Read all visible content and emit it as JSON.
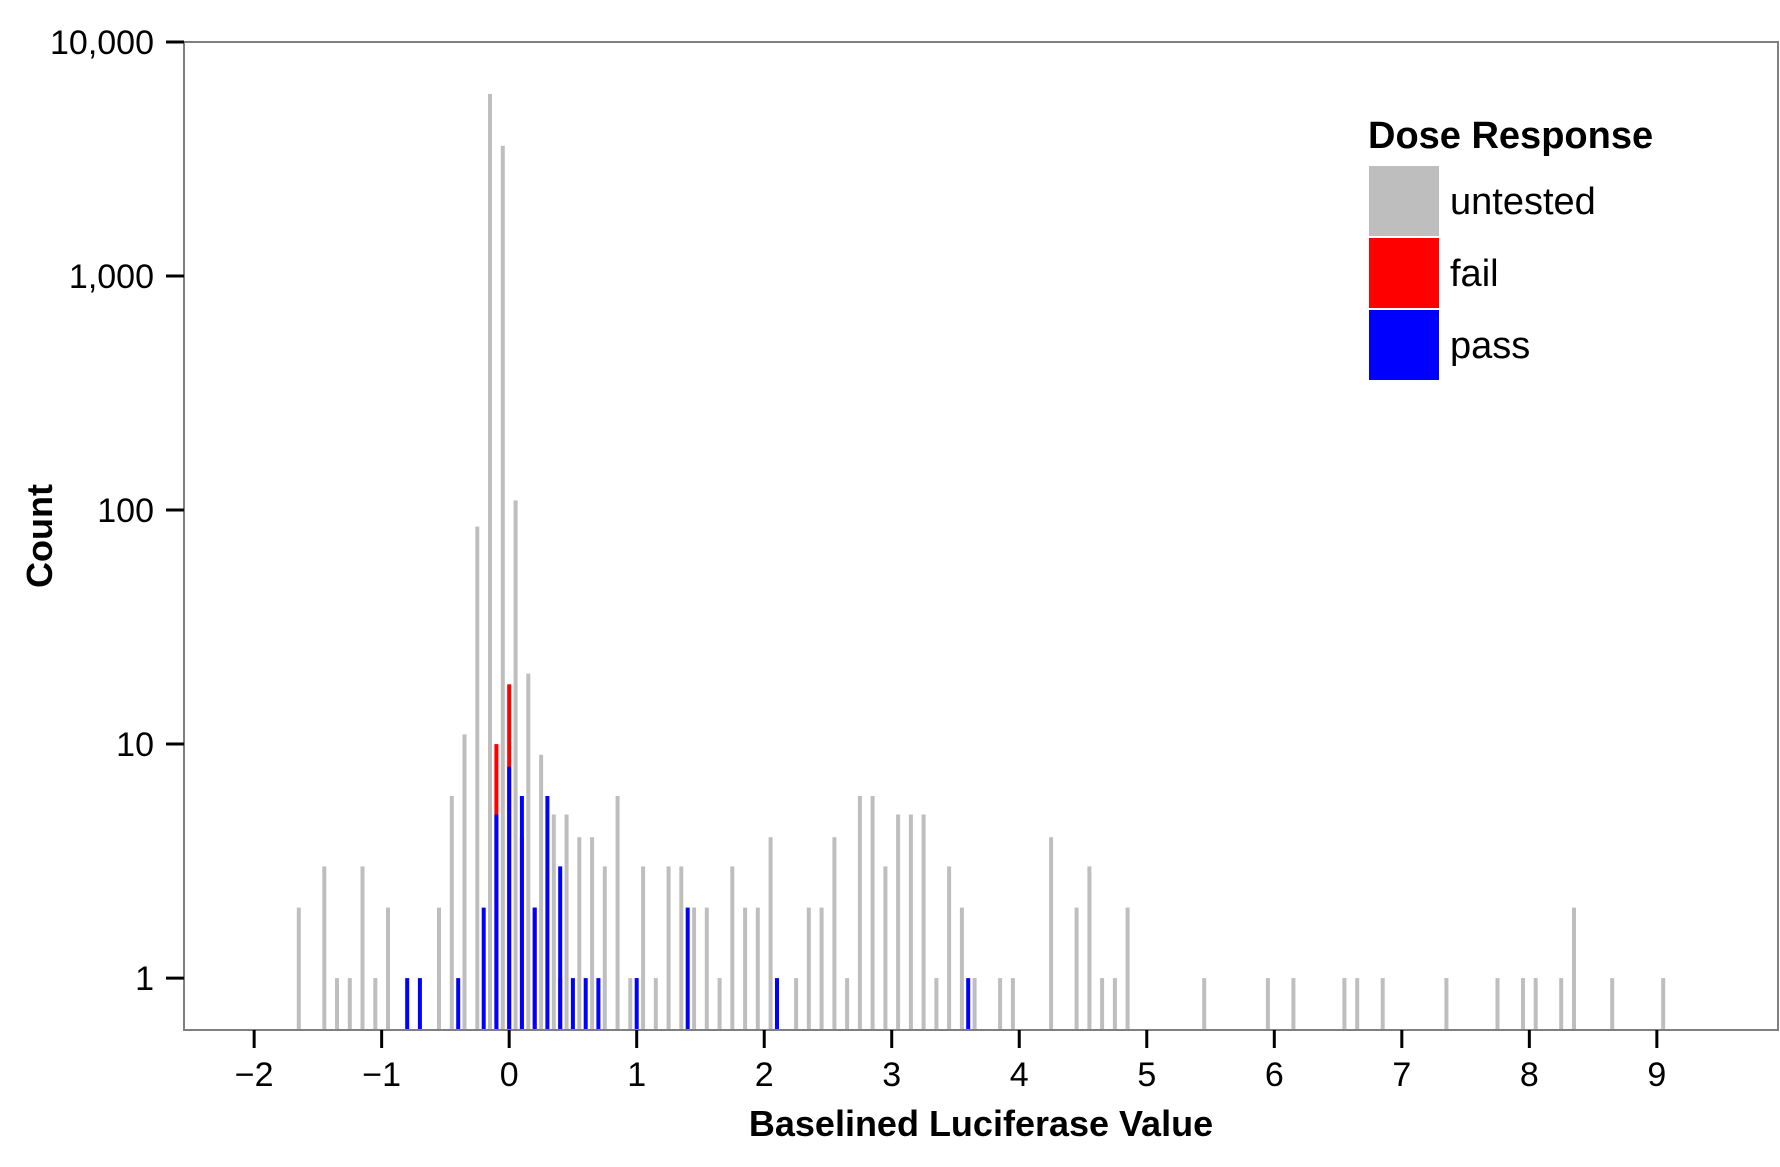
{
  "chart_data": {
    "type": "bar",
    "title": "",
    "xlabel": "Baselined Luciferase Value",
    "ylabel": "Count",
    "yscale": "log10",
    "xlim": [
      -2.55,
      9.95
    ],
    "ylim": [
      0.6,
      10000
    ],
    "x_ticks": [
      -2,
      -1,
      0,
      1,
      2,
      3,
      4,
      5,
      6,
      7,
      8,
      9
    ],
    "x_tick_labels": [
      "−2",
      "−1",
      "0",
      "1",
      "2",
      "3",
      "4",
      "5",
      "6",
      "7",
      "8",
      "9"
    ],
    "y_ticks": [
      1,
      10,
      100,
      1000,
      10000
    ],
    "y_tick_labels": [
      "1",
      "10",
      "100",
      "1,000",
      "10,000"
    ],
    "grid": false,
    "legend": {
      "title": "Dose Response",
      "position": "top-right",
      "entries": [
        {
          "label": "untested",
          "color": "#bebebe"
        },
        {
          "label": "fail",
          "color": "#ff0000"
        },
        {
          "label": "pass",
          "color": "#0000ff"
        }
      ]
    },
    "series": [
      {
        "name": "untested",
        "color": "#bebebe",
        "points": [
          {
            "x": -1.65,
            "y": 2
          },
          {
            "x": -1.45,
            "y": 3
          },
          {
            "x": -1.35,
            "y": 1
          },
          {
            "x": -1.25,
            "y": 1
          },
          {
            "x": -1.15,
            "y": 3
          },
          {
            "x": -1.05,
            "y": 1
          },
          {
            "x": -0.95,
            "y": 2
          },
          {
            "x": -0.55,
            "y": 2
          },
          {
            "x": -0.45,
            "y": 6
          },
          {
            "x": -0.35,
            "y": 11
          },
          {
            "x": -0.25,
            "y": 85
          },
          {
            "x": -0.15,
            "y": 6000
          },
          {
            "x": -0.05,
            "y": 3600
          },
          {
            "x": 0.05,
            "y": 110
          },
          {
            "x": 0.15,
            "y": 20
          },
          {
            "x": 0.25,
            "y": 9
          },
          {
            "x": 0.35,
            "y": 5
          },
          {
            "x": 0.45,
            "y": 5
          },
          {
            "x": 0.55,
            "y": 4
          },
          {
            "x": 0.65,
            "y": 4
          },
          {
            "x": 0.75,
            "y": 3
          },
          {
            "x": 0.85,
            "y": 6
          },
          {
            "x": 0.95,
            "y": 1
          },
          {
            "x": 1.05,
            "y": 3
          },
          {
            "x": 1.15,
            "y": 1
          },
          {
            "x": 1.25,
            "y": 3
          },
          {
            "x": 1.35,
            "y": 3
          },
          {
            "x": 1.45,
            "y": 2
          },
          {
            "x": 1.55,
            "y": 2
          },
          {
            "x": 1.65,
            "y": 1
          },
          {
            "x": 1.75,
            "y": 3
          },
          {
            "x": 1.85,
            "y": 2
          },
          {
            "x": 1.95,
            "y": 2
          },
          {
            "x": 2.05,
            "y": 4
          },
          {
            "x": 2.25,
            "y": 1
          },
          {
            "x": 2.35,
            "y": 2
          },
          {
            "x": 2.45,
            "y": 2
          },
          {
            "x": 2.55,
            "y": 4
          },
          {
            "x": 2.65,
            "y": 1
          },
          {
            "x": 2.75,
            "y": 6
          },
          {
            "x": 2.85,
            "y": 6
          },
          {
            "x": 2.95,
            "y": 3
          },
          {
            "x": 3.05,
            "y": 5
          },
          {
            "x": 3.15,
            "y": 5
          },
          {
            "x": 3.25,
            "y": 5
          },
          {
            "x": 3.35,
            "y": 1
          },
          {
            "x": 3.45,
            "y": 3
          },
          {
            "x": 3.55,
            "y": 2
          },
          {
            "x": 3.65,
            "y": 1
          },
          {
            "x": 3.85,
            "y": 1
          },
          {
            "x": 3.95,
            "y": 1
          },
          {
            "x": 4.25,
            "y": 4
          },
          {
            "x": 4.45,
            "y": 2
          },
          {
            "x": 4.55,
            "y": 3
          },
          {
            "x": 4.65,
            "y": 1
          },
          {
            "x": 4.75,
            "y": 1
          },
          {
            "x": 4.85,
            "y": 2
          },
          {
            "x": 5.45,
            "y": 1
          },
          {
            "x": 5.95,
            "y": 1
          },
          {
            "x": 6.15,
            "y": 1
          },
          {
            "x": 6.55,
            "y": 1
          },
          {
            "x": 6.65,
            "y": 1
          },
          {
            "x": 6.85,
            "y": 1
          },
          {
            "x": 7.35,
            "y": 1
          },
          {
            "x": 7.75,
            "y": 1
          },
          {
            "x": 7.95,
            "y": 1
          },
          {
            "x": 8.05,
            "y": 1
          },
          {
            "x": 8.25,
            "y": 1
          },
          {
            "x": 8.35,
            "y": 2
          },
          {
            "x": 8.65,
            "y": 1
          },
          {
            "x": 9.05,
            "y": 1
          }
        ]
      },
      {
        "name": "fail",
        "color": "#ff0000",
        "points": [
          {
            "x": -0.1,
            "y": 10
          },
          {
            "x": 0.0,
            "y": 18
          },
          {
            "x": 0.1,
            "y": 4
          },
          {
            "x": 0.2,
            "y": 2
          },
          {
            "x": 0.4,
            "y": 1
          }
        ]
      },
      {
        "name": "pass",
        "color": "#0000ff",
        "points": [
          {
            "x": -0.8,
            "y": 1
          },
          {
            "x": -0.7,
            "y": 1
          },
          {
            "x": -0.4,
            "y": 1
          },
          {
            "x": -0.2,
            "y": 2
          },
          {
            "x": -0.1,
            "y": 5
          },
          {
            "x": 0.0,
            "y": 8
          },
          {
            "x": 0.1,
            "y": 6
          },
          {
            "x": 0.2,
            "y": 2
          },
          {
            "x": 0.3,
            "y": 6
          },
          {
            "x": 0.4,
            "y": 3
          },
          {
            "x": 0.5,
            "y": 1
          },
          {
            "x": 0.6,
            "y": 1
          },
          {
            "x": 0.7,
            "y": 1
          },
          {
            "x": 1.0,
            "y": 1
          },
          {
            "x": 1.4,
            "y": 2
          },
          {
            "x": 2.1,
            "y": 1
          },
          {
            "x": 3.6,
            "y": 1
          }
        ]
      }
    ]
  }
}
